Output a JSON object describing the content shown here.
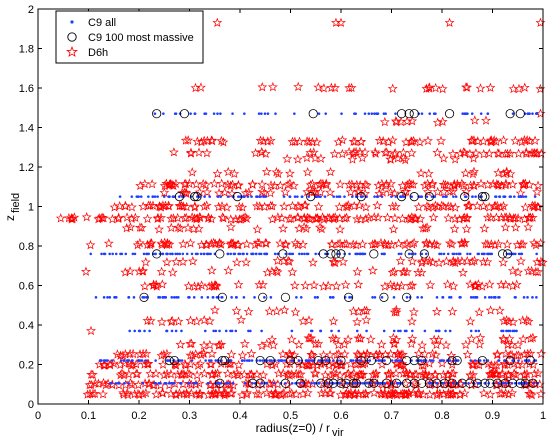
{
  "chart_data": {
    "type": "scatter",
    "title": "",
    "xlabel": "radius(z=0) / r",
    "xlabel_sub": "vir",
    "ylabel": "z",
    "ylabel_sub": "field",
    "xlim": [
      0,
      1
    ],
    "ylim": [
      0,
      2
    ],
    "xticks": [
      0,
      0.1,
      0.2,
      0.3,
      0.4,
      0.5,
      0.6,
      0.7,
      0.8,
      0.9,
      1
    ],
    "yticks": [
      0,
      0.2,
      0.4,
      0.6,
      0.8,
      1,
      1.2,
      1.4,
      1.6,
      1.8,
      2
    ],
    "grid": false,
    "legend_position": "top-left",
    "series": [
      {
        "name": "C9 all",
        "marker": "dot",
        "color": "#1f3fff",
        "levels": [
          {
            "y": 0.105,
            "x_range": [
              0.14,
              0.99
            ],
            "n": 150
          },
          {
            "y": 0.22,
            "x_range": [
              0.12,
              0.99
            ],
            "n": 170
          },
          {
            "y": 0.37,
            "x_range": [
              0.18,
              0.99
            ],
            "n": 55
          },
          {
            "y": 0.54,
            "x_range": [
              0.1,
              0.99
            ],
            "n": 90
          },
          {
            "y": 0.76,
            "x_range": [
              0.1,
              0.99
            ],
            "n": 140
          },
          {
            "y": 1.05,
            "x_range": [
              0.16,
              0.99
            ],
            "n": 130
          },
          {
            "y": 1.47,
            "x_range": [
              0.23,
              0.99
            ],
            "n": 60
          }
        ]
      },
      {
        "name": "C9 100 most massive",
        "marker": "circle",
        "color": "#000000",
        "points": [
          {
            "x": 0.235,
            "y": 1.47
          },
          {
            "x": 0.29,
            "y": 1.47
          },
          {
            "x": 0.545,
            "y": 1.47
          },
          {
            "x": 0.72,
            "y": 1.47
          },
          {
            "x": 0.735,
            "y": 1.47
          },
          {
            "x": 0.745,
            "y": 1.47
          },
          {
            "x": 0.815,
            "y": 1.47
          },
          {
            "x": 0.935,
            "y": 1.47
          },
          {
            "x": 0.955,
            "y": 1.47
          },
          {
            "x": 0.28,
            "y": 1.05
          },
          {
            "x": 0.31,
            "y": 1.05
          },
          {
            "x": 0.315,
            "y": 1.05
          },
          {
            "x": 0.395,
            "y": 1.05
          },
          {
            "x": 0.54,
            "y": 1.05
          },
          {
            "x": 0.64,
            "y": 1.05
          },
          {
            "x": 0.72,
            "y": 1.05
          },
          {
            "x": 0.745,
            "y": 1.05
          },
          {
            "x": 0.775,
            "y": 1.05
          },
          {
            "x": 0.845,
            "y": 1.05
          },
          {
            "x": 0.88,
            "y": 1.05
          },
          {
            "x": 0.885,
            "y": 1.05
          },
          {
            "x": 0.235,
            "y": 0.76
          },
          {
            "x": 0.36,
            "y": 0.76
          },
          {
            "x": 0.485,
            "y": 0.76
          },
          {
            "x": 0.565,
            "y": 0.76
          },
          {
            "x": 0.58,
            "y": 0.76
          },
          {
            "x": 0.59,
            "y": 0.76
          },
          {
            "x": 0.6,
            "y": 0.76
          },
          {
            "x": 0.665,
            "y": 0.76
          },
          {
            "x": 0.735,
            "y": 0.76
          },
          {
            "x": 0.765,
            "y": 0.76
          },
          {
            "x": 0.92,
            "y": 0.76
          },
          {
            "x": 0.93,
            "y": 0.76
          },
          {
            "x": 0.21,
            "y": 0.54
          },
          {
            "x": 0.365,
            "y": 0.54
          },
          {
            "x": 0.445,
            "y": 0.54
          },
          {
            "x": 0.49,
            "y": 0.54
          },
          {
            "x": 0.615,
            "y": 0.54
          },
          {
            "x": 0.685,
            "y": 0.54
          },
          {
            "x": 0.73,
            "y": 0.54
          },
          {
            "x": 0.26,
            "y": 0.22
          },
          {
            "x": 0.27,
            "y": 0.22
          },
          {
            "x": 0.365,
            "y": 0.22
          },
          {
            "x": 0.37,
            "y": 0.22
          },
          {
            "x": 0.44,
            "y": 0.22
          },
          {
            "x": 0.46,
            "y": 0.22
          },
          {
            "x": 0.5,
            "y": 0.22
          },
          {
            "x": 0.515,
            "y": 0.22
          },
          {
            "x": 0.555,
            "y": 0.22
          },
          {
            "x": 0.57,
            "y": 0.22
          },
          {
            "x": 0.6,
            "y": 0.22
          },
          {
            "x": 0.64,
            "y": 0.22
          },
          {
            "x": 0.66,
            "y": 0.22
          },
          {
            "x": 0.69,
            "y": 0.22
          },
          {
            "x": 0.73,
            "y": 0.22
          },
          {
            "x": 0.745,
            "y": 0.22
          },
          {
            "x": 0.76,
            "y": 0.22
          },
          {
            "x": 0.82,
            "y": 0.22
          },
          {
            "x": 0.83,
            "y": 0.22
          },
          {
            "x": 0.88,
            "y": 0.22
          },
          {
            "x": 0.935,
            "y": 0.22
          },
          {
            "x": 0.975,
            "y": 0.22
          },
          {
            "x": 0.36,
            "y": 0.105
          },
          {
            "x": 0.425,
            "y": 0.105
          },
          {
            "x": 0.44,
            "y": 0.105
          },
          {
            "x": 0.49,
            "y": 0.105
          },
          {
            "x": 0.52,
            "y": 0.105
          },
          {
            "x": 0.56,
            "y": 0.105
          },
          {
            "x": 0.575,
            "y": 0.105
          },
          {
            "x": 0.585,
            "y": 0.105
          },
          {
            "x": 0.6,
            "y": 0.105
          },
          {
            "x": 0.61,
            "y": 0.105
          },
          {
            "x": 0.625,
            "y": 0.105
          },
          {
            "x": 0.63,
            "y": 0.105
          },
          {
            "x": 0.655,
            "y": 0.105
          },
          {
            "x": 0.665,
            "y": 0.105
          },
          {
            "x": 0.69,
            "y": 0.105
          },
          {
            "x": 0.71,
            "y": 0.105
          },
          {
            "x": 0.73,
            "y": 0.105
          },
          {
            "x": 0.745,
            "y": 0.105
          },
          {
            "x": 0.76,
            "y": 0.105
          },
          {
            "x": 0.775,
            "y": 0.105
          },
          {
            "x": 0.79,
            "y": 0.105
          },
          {
            "x": 0.805,
            "y": 0.105
          },
          {
            "x": 0.82,
            "y": 0.105
          },
          {
            "x": 0.84,
            "y": 0.105
          },
          {
            "x": 0.855,
            "y": 0.105
          },
          {
            "x": 0.87,
            "y": 0.105
          },
          {
            "x": 0.885,
            "y": 0.105
          },
          {
            "x": 0.895,
            "y": 0.105
          },
          {
            "x": 0.91,
            "y": 0.105
          },
          {
            "x": 0.925,
            "y": 0.105
          },
          {
            "x": 0.94,
            "y": 0.105
          },
          {
            "x": 0.955,
            "y": 0.105
          },
          {
            "x": 0.965,
            "y": 0.105
          },
          {
            "x": 0.98,
            "y": 0.105
          }
        ]
      },
      {
        "name": "D6h",
        "marker": "star",
        "color": "#ff0000",
        "levels": [
          {
            "y": 0.05,
            "x_range": [
              0.09,
              1.0
            ],
            "n": 130
          },
          {
            "y": 0.1,
            "x_range": [
              0.09,
              1.0
            ],
            "n": 100
          },
          {
            "y": 0.15,
            "x_range": [
              0.1,
              1.0
            ],
            "n": 110
          },
          {
            "y": 0.2,
            "x_range": [
              0.12,
              1.0
            ],
            "n": 90
          },
          {
            "y": 0.25,
            "x_range": [
              0.15,
              1.0
            ],
            "n": 70
          },
          {
            "y": 0.3,
            "x_range": [
              0.28,
              1.0
            ],
            "n": 30
          },
          {
            "y": 0.33,
            "x_range": [
              0.35,
              1.0
            ],
            "n": 25
          },
          {
            "y": 0.42,
            "x_range": [
              0.2,
              1.0
            ],
            "n": 25
          },
          {
            "y": 0.47,
            "x_range": [
              0.3,
              0.95
            ],
            "n": 20
          },
          {
            "y": 0.6,
            "x_range": [
              0.2,
              1.0
            ],
            "n": 50
          },
          {
            "y": 0.67,
            "x_range": [
              0.1,
              1.0
            ],
            "n": 30
          },
          {
            "y": 0.72,
            "x_range": [
              0.2,
              1.0
            ],
            "n": 40
          },
          {
            "y": 0.81,
            "x_range": [
              0.1,
              1.0
            ],
            "n": 90
          },
          {
            "y": 0.89,
            "x_range": [
              0.15,
              1.0
            ],
            "n": 30
          },
          {
            "y": 0.94,
            "x_range": [
              0.05,
              1.0
            ],
            "n": 110
          },
          {
            "y": 1.0,
            "x_range": [
              0.15,
              1.0
            ],
            "n": 80
          },
          {
            "y": 1.07,
            "x_range": [
              0.25,
              1.0
            ],
            "n": 40
          },
          {
            "y": 1.11,
            "x_range": [
              0.2,
              1.0
            ],
            "n": 90
          },
          {
            "y": 1.17,
            "x_range": [
              0.3,
              0.95
            ],
            "n": 20
          },
          {
            "y": 1.24,
            "x_range": [
              0.45,
              0.95
            ],
            "n": 15
          },
          {
            "y": 1.27,
            "x_range": [
              0.25,
              1.0
            ],
            "n": 50
          },
          {
            "y": 1.33,
            "x_range": [
              0.27,
              1.0
            ],
            "n": 55
          },
          {
            "y": 1.43,
            "x_range": [
              0.6,
              0.9
            ],
            "n": 10
          },
          {
            "y": 1.6,
            "x_range": [
              0.3,
              1.0
            ],
            "n": 25
          }
        ],
        "points": [
          {
            "x": 0.355,
            "y": 1.93
          },
          {
            "x": 0.59,
            "y": 1.93
          },
          {
            "x": 0.6,
            "y": 1.93
          },
          {
            "x": 0.815,
            "y": 1.93
          },
          {
            "x": 0.995,
            "y": 1.93
          },
          {
            "x": 0.045,
            "y": 0.94
          },
          {
            "x": 0.095,
            "y": 0.67
          },
          {
            "x": 0.105,
            "y": 0.37
          },
          {
            "x": 0.995,
            "y": 1.47
          }
        ]
      }
    ]
  }
}
